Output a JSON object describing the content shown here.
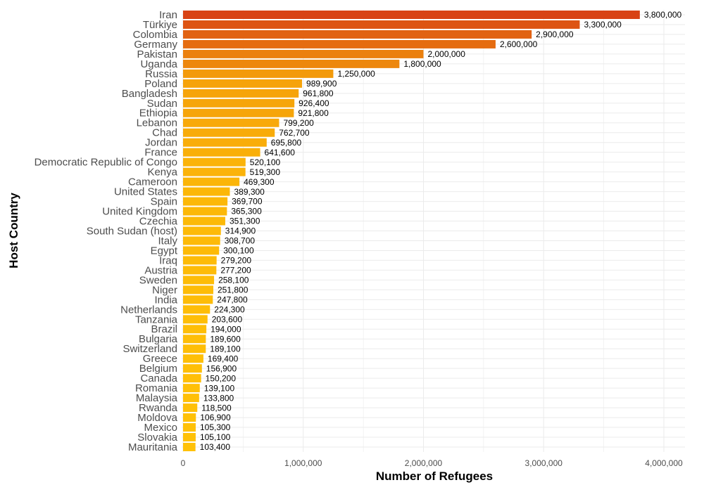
{
  "chart_data": {
    "type": "bar",
    "orientation": "horizontal",
    "title": "",
    "xlabel": "Number of Refugees",
    "ylabel": "Host Country",
    "xlim": [
      0,
      4200000
    ],
    "x_ticks": [
      0,
      1000000,
      2000000,
      3000000,
      4000000
    ],
    "x_tick_labels": [
      "0",
      "1,000,000",
      "2,000,000",
      "3,000,000",
      "4,000,000"
    ],
    "grid": true,
    "legend": "none",
    "color_low": "#FFC107",
    "color_high": "#D84315",
    "categories": [
      "Iran",
      "Türkiye",
      "Colombia",
      "Germany",
      "Pakistan",
      "Uganda",
      "Russia",
      "Poland",
      "Bangladesh",
      "Sudan",
      "Ethiopia",
      "Lebanon",
      "Chad",
      "Jordan",
      "France",
      "Democratic Republic of Congo",
      "Kenya",
      "Cameroon",
      "United States",
      "Spain",
      "United Kingdom",
      "Czechia",
      "South Sudan (host)",
      "Italy",
      "Egypt",
      "Iraq",
      "Austria",
      "Sweden",
      "Niger",
      "India",
      "Netherlands",
      "Tanzania",
      "Brazil",
      "Bulgaria",
      "Switzerland",
      "Greece",
      "Belgium",
      "Canada",
      "Romania",
      "Malaysia",
      "Rwanda",
      "Moldova",
      "Mexico",
      "Slovakia",
      "Mauritania"
    ],
    "values": [
      3800000,
      3300000,
      2900000,
      2600000,
      2000000,
      1800000,
      1250000,
      989900,
      961800,
      926400,
      921800,
      799200,
      762700,
      695800,
      641600,
      520100,
      519300,
      469300,
      389300,
      369700,
      365300,
      351300,
      314900,
      308700,
      300100,
      279200,
      277200,
      258100,
      251800,
      247800,
      224300,
      203600,
      194000,
      189600,
      189100,
      169400,
      156900,
      150200,
      139100,
      133800,
      118500,
      106900,
      105300,
      105100,
      103400
    ],
    "value_labels": [
      "3,800,000",
      "3,300,000",
      "2,900,000",
      "2,600,000",
      "2,000,000",
      "1,800,000",
      "1,250,000",
      "989,900",
      "961,800",
      "926,400",
      "921,800",
      "799,200",
      "762,700",
      "695,800",
      "641,600",
      "520,100",
      "519,300",
      "469,300",
      "389,300",
      "369,700",
      "365,300",
      "351,300",
      "314,900",
      "308,700",
      "300,100",
      "279,200",
      "277,200",
      "258,100",
      "251,800",
      "247,800",
      "224,300",
      "203,600",
      "194,000",
      "189,600",
      "189,100",
      "169,400",
      "156,900",
      "150,200",
      "139,100",
      "133,800",
      "118,500",
      "106,900",
      "105,300",
      "105,100",
      "103,400"
    ]
  }
}
